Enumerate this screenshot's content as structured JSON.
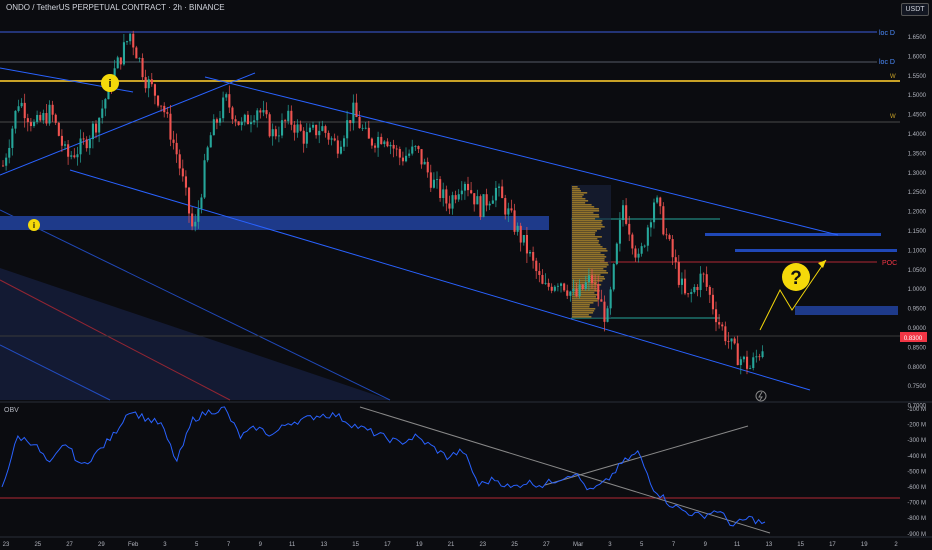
{
  "header": {
    "title": "ONDO / TetherUS PERPETUAL CONTRACT · 2h · BINANCE",
    "unit": "USDT"
  },
  "price_axis": {
    "ticks": [
      "1.6500",
      "1.6000",
      "1.5500",
      "1.5000",
      "1.4500",
      "1.4000",
      "1.3500",
      "1.3000",
      "1.2500",
      "1.2000",
      "1.1500",
      "1.1000",
      "1.0500",
      "1.0000",
      "0.9500",
      "0.9000",
      "0.8500",
      "0.8000",
      "0.7500",
      "0.7000"
    ],
    "current_price": "0.8300",
    "current_color": "#f23645"
  },
  "obv_axis": {
    "label": "OBV",
    "ticks": [
      "-100 M",
      "-200 M",
      "-300 M",
      "-400 M",
      "-500 M",
      "-600 M",
      "-700 M",
      "-800 M",
      "-900 M"
    ]
  },
  "time_axis": {
    "ticks": [
      "23",
      "25",
      "27",
      "29",
      "Feb",
      "3",
      "5",
      "7",
      "9",
      "11",
      "13",
      "15",
      "17",
      "19",
      "21",
      "23",
      "25",
      "27",
      "Mar",
      "3",
      "5",
      "7",
      "9",
      "11",
      "13",
      "15",
      "17",
      "19",
      "2"
    ]
  },
  "annotations": {
    "loc_d_1": "loc D",
    "loc_d_2": "loc D",
    "w_1": "W",
    "w_2": "W",
    "poc": "POC",
    "info_glyph": "i",
    "question_glyph": "?"
  },
  "colors": {
    "up": "#26a69a",
    "down": "#ef5350",
    "trendline": "#2962ff",
    "zone": "#1e3a8a",
    "weekly_line": "#c9a227",
    "poc": "#f23645",
    "obv": "#2962ff",
    "callout": "#f5d90a"
  },
  "chart_data": [
    {
      "type": "candlestick",
      "title": "ONDO / TetherUS PERPETUAL CONTRACT · 2h · BINANCE",
      "ylim": [
        0.69,
        1.68
      ],
      "key_levels": [
        {
          "label": "loc D",
          "value": 1.61
        },
        {
          "label": "loc D",
          "value": 1.535
        },
        {
          "label": "W",
          "value": 1.485
        },
        {
          "label": "W",
          "value": 1.38
        },
        {
          "label": "POC",
          "value": 1.02
        }
      ],
      "close_path": [
        [
          23,
          1.28
        ],
        [
          24,
          1.45
        ],
        [
          25,
          1.38
        ],
        [
          26,
          1.42
        ],
        [
          27,
          1.3
        ],
        [
          28,
          1.33
        ],
        [
          29,
          1.4
        ],
        [
          30,
          1.52
        ],
        [
          31,
          1.62
        ],
        [
          32,
          1.5
        ],
        [
          33,
          1.44
        ],
        [
          34,
          1.3
        ],
        [
          35,
          1.1
        ],
        [
          36,
          1.35
        ],
        [
          37,
          1.45
        ],
        [
          38,
          1.38
        ],
        [
          39,
          1.43
        ],
        [
          40,
          1.36
        ],
        [
          41,
          1.4
        ],
        [
          42,
          1.35
        ],
        [
          43,
          1.38
        ],
        [
          44,
          1.33
        ],
        [
          45,
          1.42
        ],
        [
          46,
          1.34
        ],
        [
          47,
          1.36
        ],
        [
          48,
          1.3
        ],
        [
          49,
          1.32
        ],
        [
          50,
          1.24
        ],
        [
          51,
          1.18
        ],
        [
          52,
          1.25
        ],
        [
          53,
          1.17
        ],
        [
          54,
          1.22
        ],
        [
          55,
          1.14
        ],
        [
          56,
          1.06
        ],
        [
          57,
          0.96
        ],
        [
          58,
          0.99
        ],
        [
          59,
          0.94
        ],
        [
          60,
          0.99
        ],
        [
          61,
          0.88
        ],
        [
          62,
          1.18
        ],
        [
          63,
          1.03
        ],
        [
          64,
          1.2
        ],
        [
          65,
          1.06
        ],
        [
          66,
          0.93
        ],
        [
          67,
          1.0
        ],
        [
          68,
          0.88
        ],
        [
          69,
          0.8
        ],
        [
          70,
          0.76
        ],
        [
          71,
          0.83
        ]
      ]
    },
    {
      "type": "line",
      "ylabel": "OBV",
      "ylim": [
        -920,
        -80
      ],
      "values_M": [
        -610,
        -290,
        -330,
        -470,
        -330,
        -480,
        -390,
        -280,
        -120,
        -170,
        -210,
        -450,
        -180,
        -130,
        -110,
        -290,
        -230,
        -280,
        -200,
        -180,
        -150,
        -150,
        -210,
        -250,
        -290,
        -330,
        -290,
        -350,
        -420,
        -380,
        -600,
        -560,
        -620,
        -580,
        -600,
        -560,
        -520,
        -640,
        -580,
        -460,
        -390,
        -620,
        -720,
        -770,
        -800,
        -760,
        -860,
        -810,
        -850
      ]
    }
  ]
}
